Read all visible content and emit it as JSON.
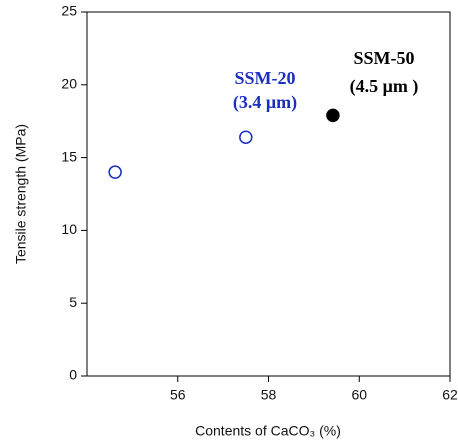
{
  "chart_data": {
    "type": "scatter",
    "x_label": "Contents of CaCO₃ (%)",
    "y_label": "Tensile strength (MPa)",
    "xlim": [
      54,
      62
    ],
    "xticks": [
      56,
      58,
      60,
      62
    ],
    "ylim": [
      0,
      25
    ],
    "yticks": [
      0,
      5,
      10,
      15,
      20,
      25
    ],
    "series": [
      {
        "color": "#1a2fc0",
        "marker": "open",
        "x": [
          54.62,
          57.5
        ],
        "values": [
          14,
          16.4
        ]
      },
      {
        "color": "#000000",
        "marker": "filled",
        "x": [
          59.42
        ],
        "values": [
          17.9
        ]
      }
    ],
    "annotations": [
      {
        "text": "SSM-20",
        "color": "#1a2fc0"
      },
      {
        "text": "(3.4 μm)",
        "color": "#1a2fc0"
      },
      {
        "text": "SSM-50",
        "color": "#000000"
      },
      {
        "text": "(4.5 μm )",
        "color": "#000000"
      }
    ]
  }
}
